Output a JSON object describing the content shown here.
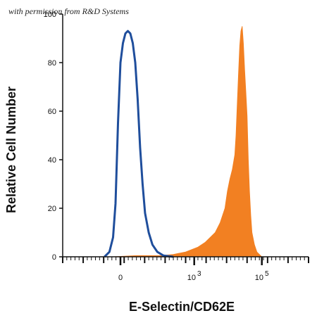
{
  "watermark": "with permission from R&D Systems",
  "chart_data": {
    "type": "area",
    "xlabel": "E-Selectin/CD62E",
    "ylabel": "Relative Cell Number",
    "x_scale": "biexponential",
    "xlim_display": [
      0,
      1
    ],
    "ylim": [
      0,
      100
    ],
    "y_ticks": [
      0,
      20,
      40,
      60,
      80,
      100
    ],
    "x_tick_labels": [
      {
        "base": "0",
        "exp": ""
      },
      {
        "base": "10",
        "exp": "3"
      },
      {
        "base": "10",
        "exp": "5"
      }
    ],
    "x_tick_positions": [
      0.235,
      0.535,
      0.81
    ],
    "series": [
      {
        "style": "outline",
        "color": "#1f4e9c",
        "x": [
          0.17,
          0.19,
          0.205,
          0.215,
          0.225,
          0.235,
          0.245,
          0.255,
          0.265,
          0.275,
          0.285,
          0.295,
          0.305,
          0.315,
          0.325,
          0.335,
          0.35,
          0.365,
          0.385,
          0.41,
          0.45
        ],
        "y": [
          0,
          2,
          8,
          22,
          55,
          80,
          88,
          92,
          93,
          92,
          88,
          80,
          65,
          45,
          30,
          18,
          10,
          5,
          2,
          0.5,
          0
        ]
      },
      {
        "style": "filled",
        "color": "#f28022",
        "x": [
          0.2,
          0.3,
          0.4,
          0.45,
          0.5,
          0.55,
          0.58,
          0.6,
          0.62,
          0.64,
          0.66,
          0.67,
          0.68,
          0.69,
          0.7,
          0.705,
          0.71,
          0.715,
          0.72,
          0.725,
          0.73,
          0.735,
          0.74,
          0.745,
          0.75,
          0.755,
          0.76,
          0.765,
          0.77,
          0.78,
          0.79,
          0.8,
          0.81
        ],
        "y": [
          0,
          0.5,
          0.5,
          1,
          2,
          4,
          6,
          8,
          10,
          14,
          20,
          27,
          32,
          36,
          42,
          50,
          63,
          75,
          87,
          93,
          95,
          88,
          77,
          68,
          58,
          40,
          27,
          17,
          10,
          5,
          2,
          1,
          0
        ]
      }
    ]
  }
}
